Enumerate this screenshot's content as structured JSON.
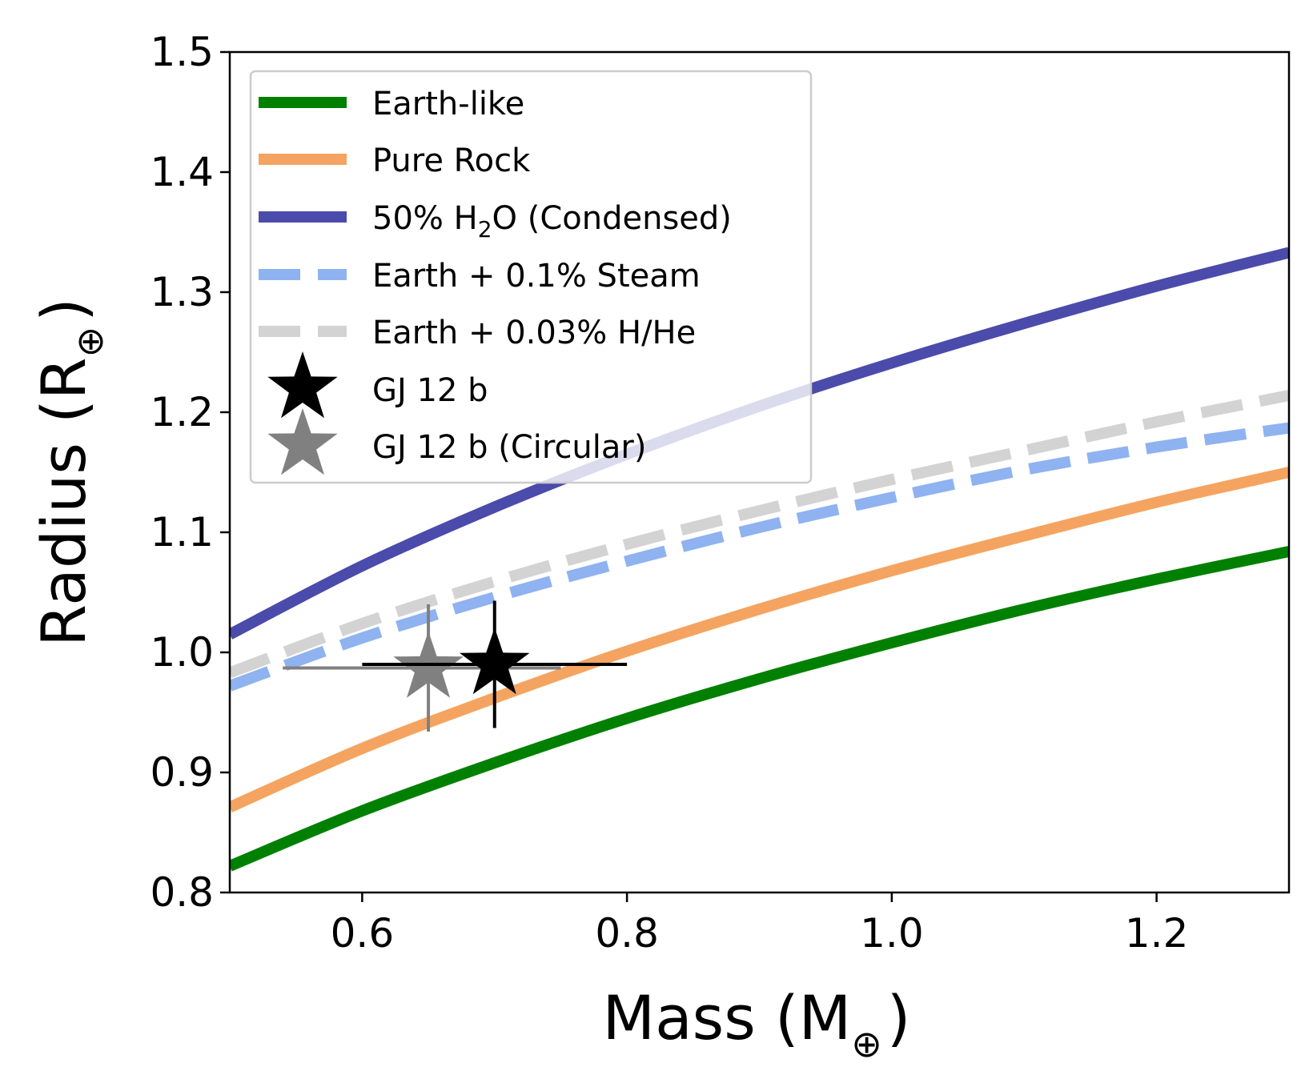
{
  "chart_data": {
    "type": "line",
    "title": "",
    "xlabel": {
      "main": "Mass (M",
      "sub": "⊕",
      "close": ")"
    },
    "ylabel": {
      "main": "Radius (R",
      "sub": "⊕",
      "close": ")"
    },
    "xlim": [
      0.5,
      1.3
    ],
    "ylim": [
      0.8,
      1.5
    ],
    "xticks": [
      0.6,
      0.8,
      1.0,
      1.2
    ],
    "xtick_labels": [
      "0.6",
      "0.8",
      "1.0",
      "1.2"
    ],
    "yticks": [
      0.8,
      0.9,
      1.0,
      1.1,
      1.2,
      1.3,
      1.4,
      1.5
    ],
    "ytick_labels": [
      "0.8",
      "0.9",
      "1.0",
      "1.1",
      "1.2",
      "1.3",
      "1.4",
      "1.5"
    ],
    "legend_position": "top-left",
    "series": [
      {
        "name": "Earth-like",
        "color": "#008000",
        "style": "solid",
        "x": [
          0.5,
          0.6,
          0.7,
          0.8,
          0.9,
          1.0,
          1.1,
          1.2,
          1.3
        ],
        "y": [
          0.822,
          0.868,
          0.908,
          0.945,
          0.978,
          1.008,
          1.036,
          1.061,
          1.084
        ]
      },
      {
        "name": "Pure Rock",
        "color": "#f4a460",
        "style": "solid",
        "x": [
          0.5,
          0.6,
          0.7,
          0.8,
          0.9,
          1.0,
          1.1,
          1.2,
          1.3
        ],
        "y": [
          0.871,
          0.92,
          0.962,
          1.001,
          1.036,
          1.068,
          1.097,
          1.125,
          1.15
        ]
      },
      {
        "name": "50% H2O (Condensed)",
        "label_parts": {
          "pre": "50% H",
          "sub": "2",
          "post": "O (Condensed)"
        },
        "color": "#4b4bab",
        "style": "solid",
        "x": [
          0.5,
          0.6,
          0.7,
          0.8,
          0.9,
          1.0,
          1.1,
          1.2,
          1.3
        ],
        "y": [
          1.015,
          1.072,
          1.121,
          1.165,
          1.205,
          1.241,
          1.274,
          1.305,
          1.333
        ]
      },
      {
        "name": "Earth + 0.1% Steam",
        "color": "#8fb2f0",
        "style": "dashed",
        "x": [
          0.5,
          0.6,
          0.7,
          0.8,
          0.9,
          1.0,
          1.1,
          1.2,
          1.3
        ],
        "y": [
          0.972,
          1.012,
          1.046,
          1.076,
          1.104,
          1.129,
          1.152,
          1.171,
          1.187
        ]
      },
      {
        "name": "Earth + 0.03% H/He",
        "color": "#d3d3d3",
        "style": "dashed",
        "x": [
          0.5,
          0.6,
          0.7,
          0.8,
          0.9,
          1.0,
          1.1,
          1.2,
          1.3
        ],
        "y": [
          0.983,
          1.024,
          1.059,
          1.09,
          1.118,
          1.144,
          1.168,
          1.192,
          1.214
        ]
      }
    ],
    "points": [
      {
        "name": "GJ 12 b",
        "color": "#000000",
        "x": 0.7,
        "y": 0.99,
        "xerr": [
          0.6,
          0.8
        ],
        "yerr": [
          0.937,
          1.043
        ]
      },
      {
        "name": "GJ 12 b (Circular)",
        "color": "#808080",
        "x": 0.65,
        "y": 0.987,
        "xerr": [
          0.54,
          0.75
        ],
        "yerr": [
          0.934,
          1.04
        ]
      }
    ]
  }
}
